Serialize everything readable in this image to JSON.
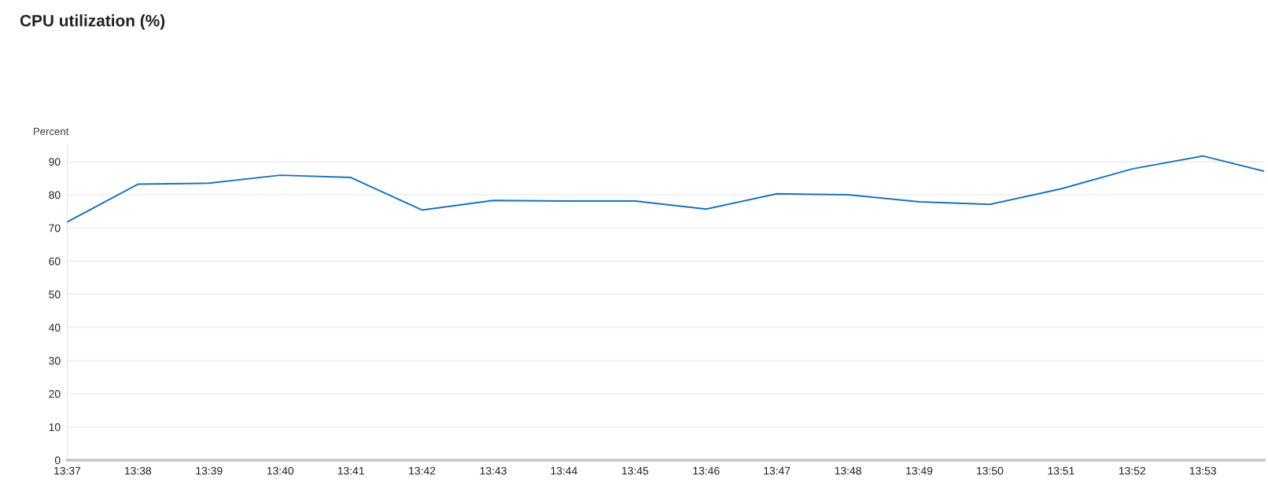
{
  "chart_data": {
    "type": "line",
    "title": "CPU utilization (%)",
    "ylabel": "Percent",
    "x": [
      13.6167,
      13.6333,
      13.65,
      13.6667,
      13.6833,
      13.7,
      13.7167,
      13.7333,
      13.75,
      13.7667,
      13.7833,
      13.8,
      13.8167,
      13.8333,
      13.85,
      13.8667,
      13.8833,
      13.8977
    ],
    "series": [
      {
        "color": "#1a73b8",
        "values": [
          71.8,
          83.2,
          83.5,
          85.9,
          85.2,
          75.4,
          78.3,
          78.1,
          78.1,
          75.7,
          80.3,
          80.0,
          77.9,
          77.1,
          81.8,
          87.8,
          91.7,
          87.1
        ]
      }
    ],
    "xlim": [
      13.6167,
      13.8977
    ],
    "ylim": [
      0,
      95
    ],
    "xticks": [
      {
        "value": 13.6167,
        "label": "13:37"
      },
      {
        "value": 13.6333,
        "label": "13:38"
      },
      {
        "value": 13.65,
        "label": "13:39"
      },
      {
        "value": 13.6667,
        "label": "13:40"
      },
      {
        "value": 13.6833,
        "label": "13:41"
      },
      {
        "value": 13.7,
        "label": "13:42"
      },
      {
        "value": 13.7167,
        "label": "13:43"
      },
      {
        "value": 13.7333,
        "label": "13:44"
      },
      {
        "value": 13.75,
        "label": "13:45"
      },
      {
        "value": 13.7667,
        "label": "13:46"
      },
      {
        "value": 13.7833,
        "label": "13:47"
      },
      {
        "value": 13.8,
        "label": "13:48"
      },
      {
        "value": 13.8167,
        "label": "13:49"
      },
      {
        "value": 13.8333,
        "label": "13:50"
      },
      {
        "value": 13.85,
        "label": "13:51"
      },
      {
        "value": 13.8667,
        "label": "13:52"
      },
      {
        "value": 13.8833,
        "label": "13:53"
      }
    ],
    "yticks": [
      0,
      10,
      20,
      30,
      40,
      50,
      60,
      70,
      80,
      90
    ],
    "grid": "y",
    "marker": "none",
    "line_style": "solid"
  }
}
